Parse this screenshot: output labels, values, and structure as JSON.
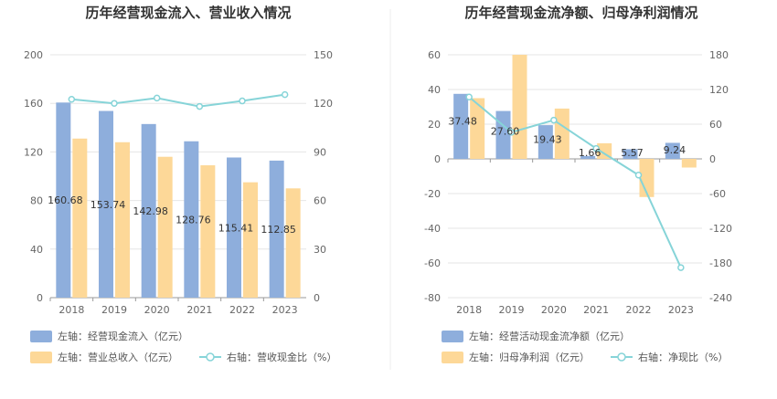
{
  "chart_data": [
    {
      "type": "bar",
      "title": "历年经营现金流入、营业收入情况",
      "categories": [
        "2018",
        "2019",
        "2020",
        "2021",
        "2022",
        "2023"
      ],
      "left_axis": {
        "min": 0,
        "max": 200,
        "ticks": [
          "0",
          "40",
          "80",
          "120",
          "160",
          "200"
        ]
      },
      "right_axis": {
        "min": 0,
        "max": 150,
        "ticks": [
          "0",
          "30",
          "60",
          "90",
          "120",
          "150"
        ]
      },
      "series": [
        {
          "name": "左轴：经营现金流入（亿元）",
          "axis": "left",
          "kind": "bar",
          "color": "#8eaedc",
          "values": [
            160.68,
            153.74,
            142.98,
            128.76,
            115.41,
            112.85
          ],
          "labels": [
            "160.68",
            "153.74",
            "142.98",
            "128.76",
            "115.41",
            "112.85"
          ]
        },
        {
          "name": "左轴：营业总收入（亿元）",
          "axis": "left",
          "kind": "bar",
          "color": "#fdd898",
          "values": [
            131,
            128,
            116,
            109,
            95,
            90
          ]
        },
        {
          "name": "右轴：营收现金比（%）",
          "axis": "right",
          "kind": "line",
          "color": "#86d4d8",
          "values": [
            122.5,
            120.0,
            123.3,
            118.1,
            121.5,
            125.4
          ]
        }
      ]
    },
    {
      "type": "bar",
      "title": "历年经营现金流净额、归母净利润情况",
      "categories": [
        "2018",
        "2019",
        "2020",
        "2021",
        "2022",
        "2023"
      ],
      "left_axis": {
        "min": -80,
        "max": 60,
        "ticks": [
          "-80",
          "-60",
          "-40",
          "-20",
          "0",
          "20",
          "40",
          "60"
        ]
      },
      "right_axis": {
        "min": -240,
        "max": 180,
        "ticks": [
          "-240",
          "-180",
          "-120",
          "-60",
          "0",
          "60",
          "120",
          "180"
        ]
      },
      "series": [
        {
          "name": "左轴：经营活动现金流净额（亿元）",
          "axis": "left",
          "kind": "bar",
          "color": "#8eaedc",
          "values": [
            37.48,
            27.6,
            19.43,
            1.66,
            5.57,
            9.24
          ],
          "labels": [
            "37.48",
            "27.60",
            "19.43",
            "1.66",
            "5.57",
            "9.24"
          ]
        },
        {
          "name": "左轴：归母净利润（亿元）",
          "axis": "left",
          "kind": "bar",
          "color": "#fdd898",
          "values": [
            35,
            60,
            29,
            9,
            -22,
            -5
          ]
        },
        {
          "name": "右轴：净现比（%）",
          "axis": "right",
          "kind": "line",
          "color": "#86d4d8",
          "values": [
            107,
            46,
            67,
            18,
            -28,
            -188
          ]
        }
      ]
    }
  ]
}
